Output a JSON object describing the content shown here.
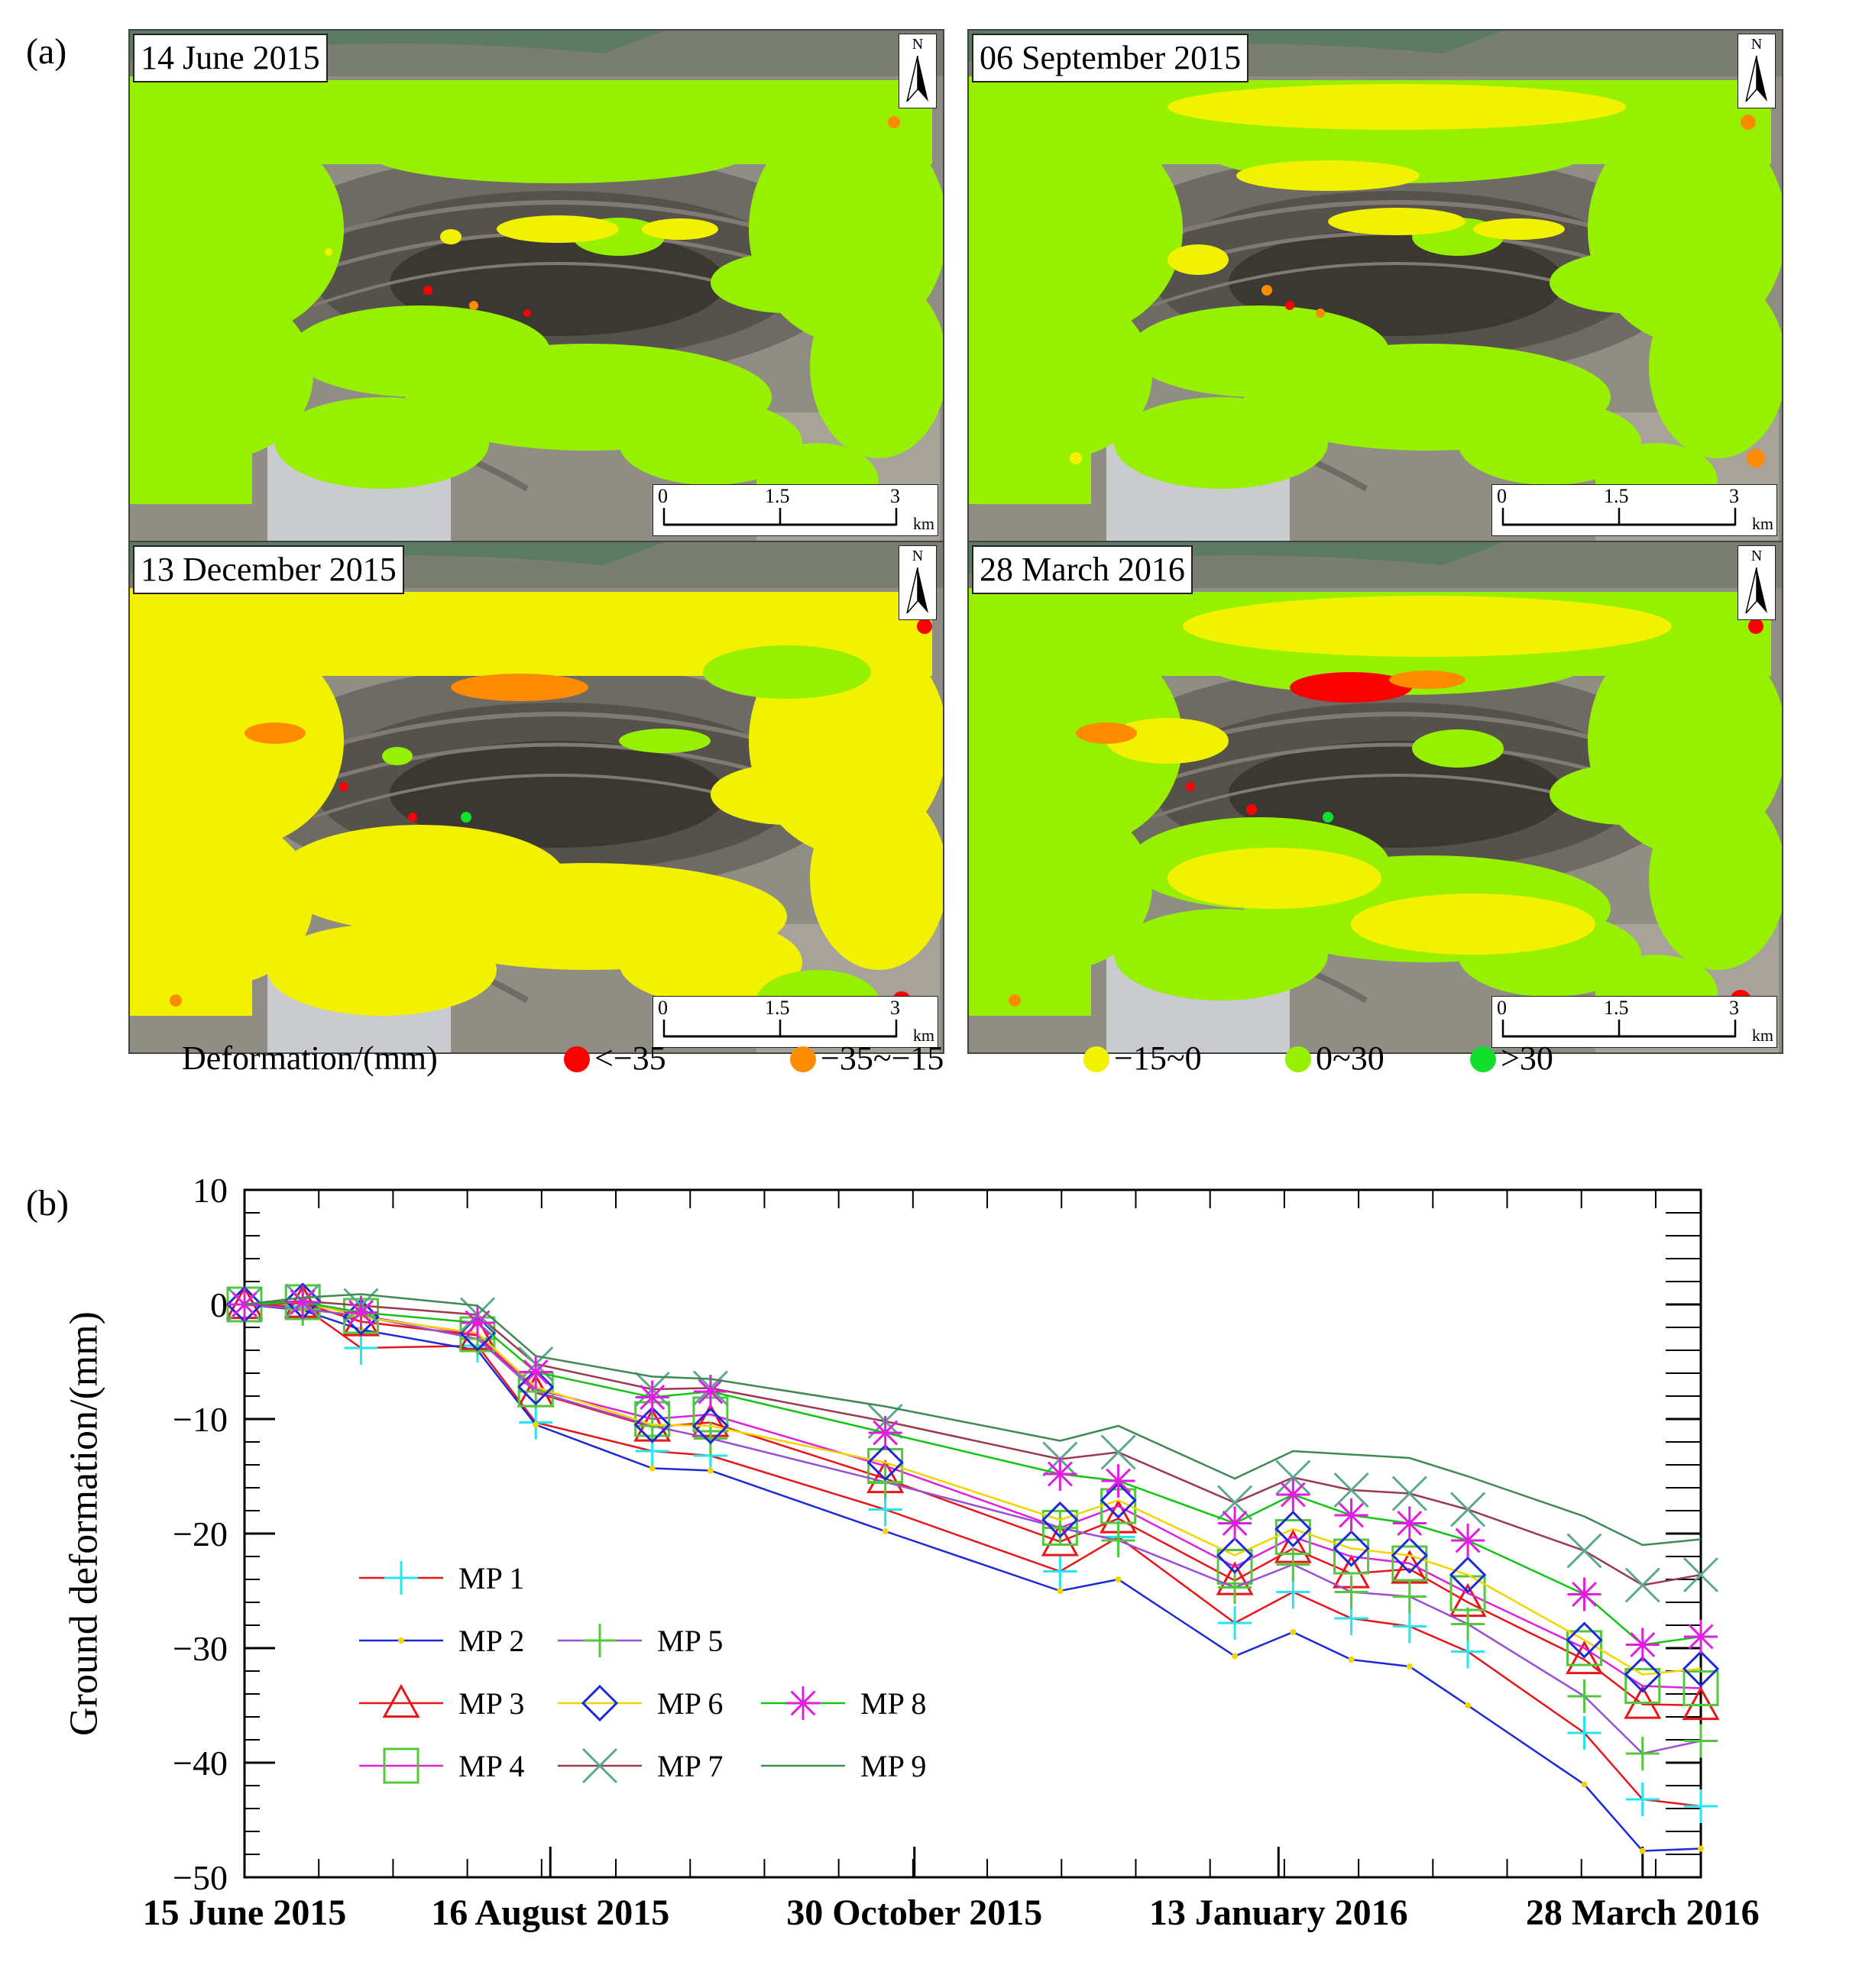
{
  "panel_a_label": "(a)",
  "panel_b_label": "(b)",
  "maps": [
    {
      "date": "14 June 2015"
    },
    {
      "date": "06 September 2015"
    },
    {
      "date": "13 December 2015"
    },
    {
      "date": "28 March 2016"
    }
  ],
  "map_common": {
    "north_label": "N",
    "scale_ticks": [
      "0",
      "1.5",
      "3"
    ],
    "scale_unit": "km"
  },
  "deformation_legend": {
    "title": "Deformation/(mm)",
    "classes": [
      {
        "label": "<−35",
        "color": "#ff0000"
      },
      {
        "label": "−35~−15",
        "color": "#ff8c00"
      },
      {
        "label": "−15~0",
        "color": "#f2f200"
      },
      {
        "label": "0~30",
        "color": "#96f000"
      },
      {
        "label": ">30",
        "color": "#12e02c"
      }
    ]
  },
  "chart_data": {
    "type": "line",
    "ylabel": "Ground deformation/(mm)",
    "xlabel": "",
    "ylim": [
      -50,
      10
    ],
    "yticks": [
      10,
      0,
      -10,
      -20,
      -30,
      -40,
      -50
    ],
    "xtick_labels": [
      "15 June 2015",
      "16 August 2015",
      "30 October 2015",
      "13 January 2016",
      "28 March 2016"
    ],
    "x": [
      "2015-06-14",
      "2015-06-26",
      "2015-07-08",
      "2015-08-01",
      "2015-08-13",
      "2015-09-06",
      "2015-09-18",
      "2015-10-24",
      "2015-11-29",
      "2015-12-11",
      "2016-01-04",
      "2016-01-16",
      "2016-01-28",
      "2016-02-09",
      "2016-02-21",
      "2016-03-16",
      "2016-03-28",
      "2016-04-09"
    ],
    "series": [
      {
        "name": "MP 1",
        "color": "#e8161b",
        "marker": "plus-cyan",
        "values": [
          0,
          -0.2,
          -3.8,
          -3.6,
          -10.3,
          -12.8,
          -13.2,
          -17.9,
          -23.3,
          -20.3,
          -27.8,
          -25.1,
          -27.4,
          -28.1,
          -30.3,
          -37.4,
          -43.2,
          -43.8
        ]
      },
      {
        "name": "MP 2",
        "color": "#1a2ad8",
        "marker": "dot",
        "values": [
          0,
          -0.5,
          -2.2,
          -4.0,
          -10.5,
          -14.3,
          -14.5,
          -19.8,
          -25.0,
          -24.0,
          -30.7,
          -28.6,
          -31.0,
          -31.6,
          -35.0,
          -41.9,
          -47.7,
          -47.5
        ]
      },
      {
        "name": "MP 3",
        "color": "#e8161b",
        "marker": "triangle",
        "values": [
          0,
          0.1,
          -1.5,
          -2.7,
          -7.7,
          -10.7,
          -10.3,
          -15.2,
          -20.7,
          -18.7,
          -24.1,
          -21.3,
          -23.5,
          -23.1,
          -26.0,
          -31.0,
          -34.9,
          -35.0
        ]
      },
      {
        "name": "MP 4",
        "color": "#dd22dd",
        "marker": "square",
        "values": [
          0,
          0.2,
          -1.0,
          -2.6,
          -7.4,
          -10.0,
          -9.6,
          -14.1,
          -19.5,
          -17.6,
          -22.9,
          -20.3,
          -22.0,
          -22.6,
          -25.2,
          -30.0,
          -33.3,
          -33.5
        ]
      },
      {
        "name": "MP 5",
        "color": "#9a4fd6",
        "marker": "plus-green",
        "values": [
          0,
          -0.4,
          -1.0,
          -3.0,
          -7.6,
          -10.6,
          -11.7,
          -15.5,
          -19.5,
          -20.6,
          -24.7,
          -22.7,
          -25.1,
          -25.5,
          -27.9,
          -34.2,
          -39.2,
          -38.1
        ]
      },
      {
        "name": "MP 6",
        "color": "#f2d500",
        "marker": "diamond",
        "values": [
          0,
          0.3,
          -1.1,
          -2.5,
          -7.2,
          -10.5,
          -10.6,
          -13.8,
          -18.8,
          -17.1,
          -21.9,
          -19.6,
          -21.3,
          -21.9,
          -23.6,
          -29.3,
          -32.3,
          -31.8
        ]
      },
      {
        "name": "MP 7",
        "color": "#9b3a4a",
        "marker": "x",
        "values": [
          0,
          0.3,
          -0.1,
          -0.9,
          -5.2,
          -7.4,
          -7.3,
          -10.2,
          -13.5,
          -12.9,
          -17.3,
          -15.1,
          -16.2,
          -16.5,
          -17.9,
          -21.5,
          -24.5,
          -23.6
        ]
      },
      {
        "name": "MP 8",
        "color": "#14c414",
        "marker": "star",
        "values": [
          0,
          0.2,
          -0.7,
          -1.6,
          -5.9,
          -8.1,
          -7.6,
          -11.2,
          -14.8,
          -15.4,
          -19.1,
          -16.6,
          -18.4,
          -19.1,
          -20.6,
          -25.3,
          -29.7,
          -29.0
        ]
      },
      {
        "name": "MP 9",
        "color": "#3e8a52",
        "marker": "none",
        "values": [
          0,
          0.6,
          0.9,
          -0.1,
          -4.5,
          -6.3,
          -6.5,
          -8.9,
          -11.9,
          -10.6,
          -15.2,
          -12.8,
          -13.1,
          -13.4,
          -15.0,
          -18.5,
          -21.0,
          -20.5
        ]
      }
    ]
  }
}
